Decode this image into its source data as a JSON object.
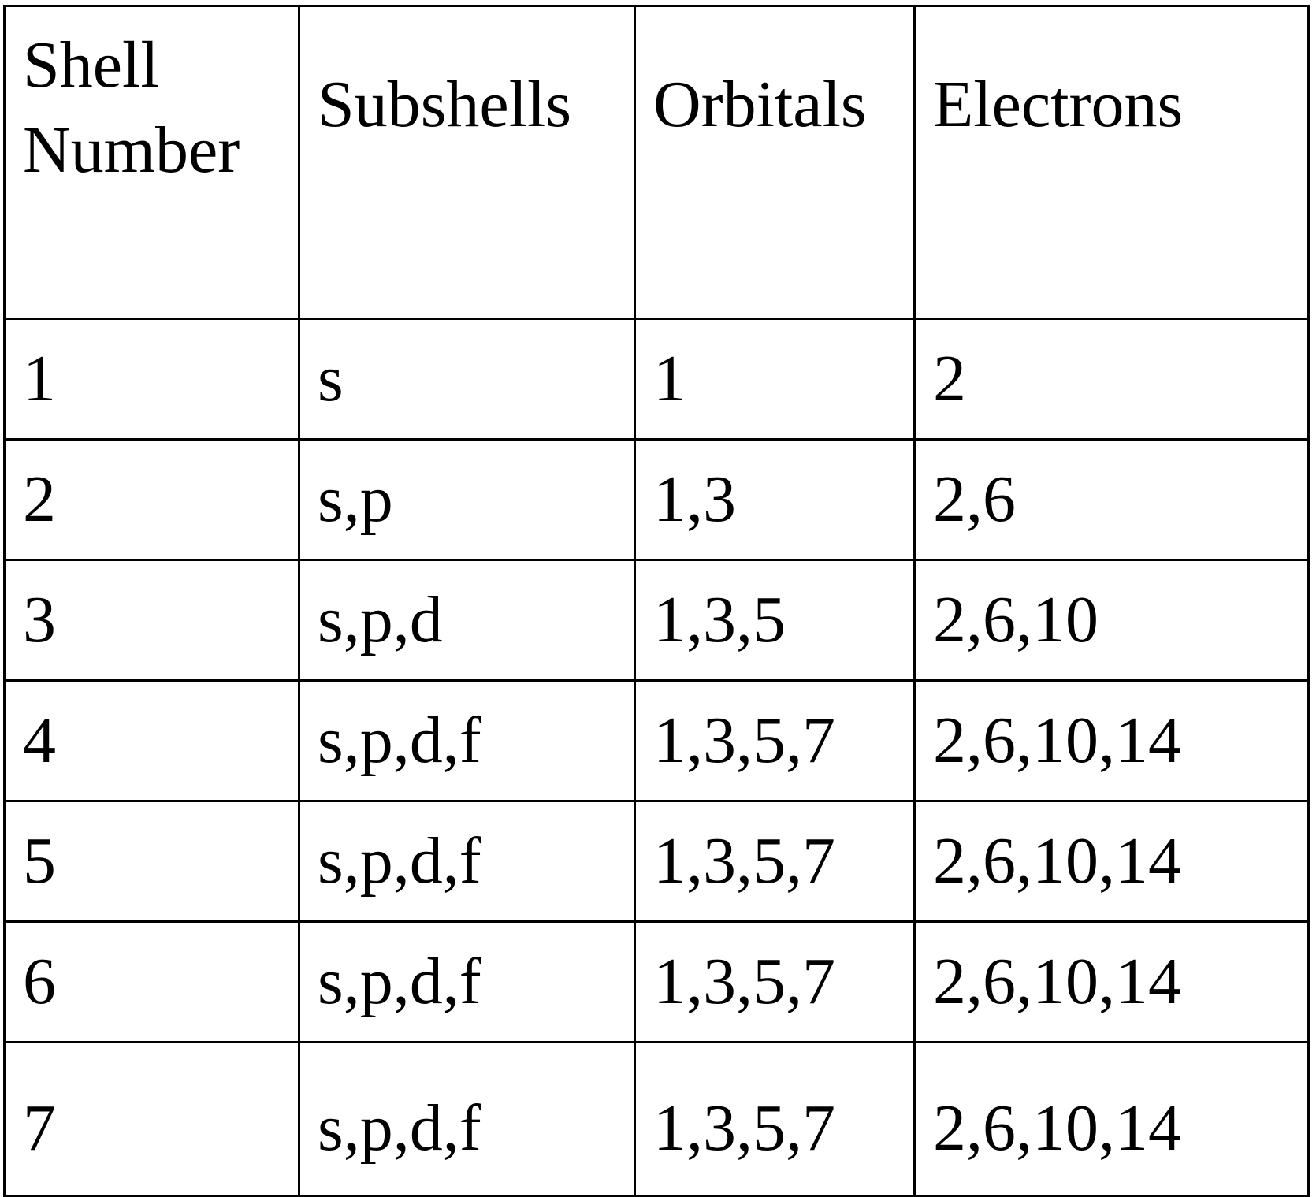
{
  "table": {
    "headers": [
      "Shell Number",
      "Subshells",
      "Orbitals",
      "Electrons"
    ],
    "header_first_lines": [
      "Shell",
      "Number"
    ],
    "rows": [
      [
        "1",
        "s",
        "1",
        "2"
      ],
      [
        "2",
        "s,p",
        "1,3",
        "2,6"
      ],
      [
        "3",
        "s,p,d",
        "1,3,5",
        "2,6,10"
      ],
      [
        "4",
        "s,p,d,f",
        "1,3,5,7",
        "2,6,10,14"
      ],
      [
        "5",
        "s,p,d,f",
        "1,3,5,7",
        "2,6,10,14"
      ],
      [
        "6",
        "s,p,d,f",
        "1,3,5,7",
        "2,6,10,14"
      ],
      [
        "7",
        "s,p,d,f",
        "1,3,5,7",
        "2,6,10,14"
      ]
    ]
  }
}
